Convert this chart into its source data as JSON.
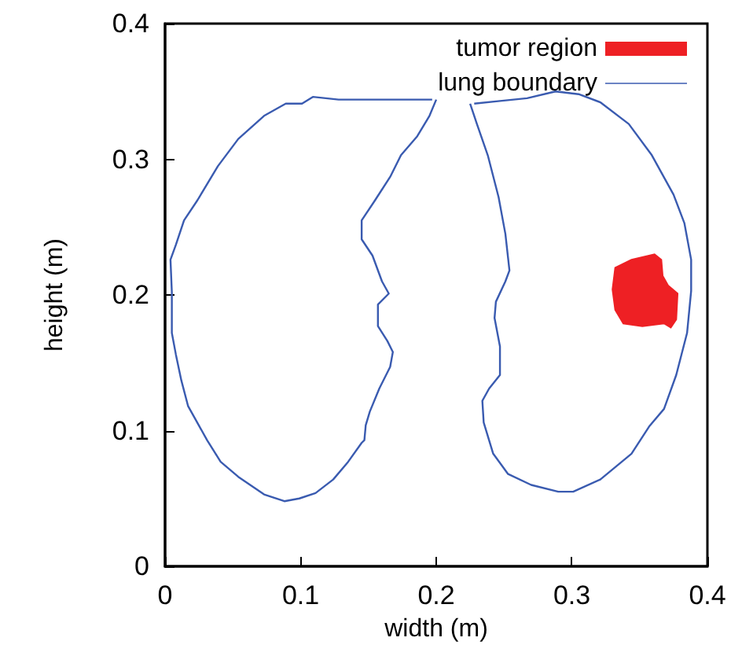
{
  "chart_data": {
    "type": "line",
    "xlabel": "width (m)",
    "ylabel": "height (m)",
    "xlim": [
      0,
      0.4
    ],
    "xticks": [
      0,
      0.1,
      0.2,
      0.3,
      0.4
    ],
    "ylim": [
      0,
      0.4
    ],
    "yticks": [
      0,
      0.1,
      0.2,
      0.3,
      0.4
    ],
    "grid": false,
    "legend": "top right",
    "marker": "none",
    "line_style": "solid",
    "series": [
      {
        "name": "tumor region",
        "type": "area",
        "color": "#ee2024",
        "x": [
          0.332,
          0.344,
          0.361,
          0.366,
          0.367,
          0.371,
          0.378,
          0.377,
          0.373,
          0.368,
          0.352,
          0.338,
          0.332,
          0.33
        ],
        "values": [
          0.22,
          0.226,
          0.23,
          0.226,
          0.214,
          0.207,
          0.201,
          0.182,
          0.176,
          0.179,
          0.177,
          0.179,
          0.189,
          0.204
        ]
      },
      {
        "name": "lung boundary",
        "color": "#3a5bb0",
        "x": [
          0.2,
          0.195,
          0.186,
          0.174,
          0.166,
          0.155,
          0.145,
          0.145,
          0.153,
          0.16,
          0.165,
          0.157,
          0.157,
          0.164,
          0.168,
          0.166,
          0.158,
          0.151,
          0.148,
          0.147,
          0.145,
          0.135,
          0.124,
          0.111,
          0.099,
          0.088,
          0.073,
          0.054,
          0.041,
          0.031,
          0.017,
          0.012,
          0.008,
          0.005,
          0.005,
          0.004,
          0.008,
          0.014,
          0.024,
          0.039,
          0.054,
          0.073,
          0.089,
          0.101,
          0.109,
          0.128,
          0.158,
          0.197
        ],
        "values": [
          0.344,
          0.332,
          0.317,
          0.303,
          0.287,
          0.27,
          0.255,
          0.241,
          0.229,
          0.21,
          0.201,
          0.193,
          0.177,
          0.166,
          0.158,
          0.147,
          0.131,
          0.114,
          0.104,
          0.093,
          0.091,
          0.077,
          0.064,
          0.054,
          0.05,
          0.048,
          0.053,
          0.066,
          0.077,
          0.093,
          0.118,
          0.137,
          0.156,
          0.172,
          0.202,
          0.226,
          0.237,
          0.255,
          0.27,
          0.295,
          0.315,
          0.332,
          0.341,
          0.341,
          0.346,
          0.344,
          0.344,
          0.344
        ]
      },
      {
        "color": "#3a5bb0",
        "x": [
          0.225,
          0.23,
          0.238,
          0.246,
          0.251,
          0.254,
          0.251,
          0.244,
          0.243,
          0.247,
          0.247,
          0.239,
          0.234,
          0.235,
          0.242,
          0.253,
          0.27,
          0.29,
          0.301,
          0.321,
          0.344,
          0.357,
          0.368,
          0.377,
          0.385,
          0.388,
          0.388,
          0.383,
          0.375,
          0.359,
          0.342,
          0.321,
          0.305,
          0.288,
          0.267,
          0.247,
          0.228
        ],
        "values": [
          0.341,
          0.326,
          0.303,
          0.272,
          0.245,
          0.218,
          0.21,
          0.195,
          0.183,
          0.162,
          0.141,
          0.131,
          0.122,
          0.106,
          0.083,
          0.068,
          0.06,
          0.055,
          0.055,
          0.064,
          0.083,
          0.103,
          0.116,
          0.141,
          0.172,
          0.203,
          0.226,
          0.253,
          0.274,
          0.303,
          0.326,
          0.342,
          0.348,
          0.35,
          0.345,
          0.343,
          0.341
        ]
      }
    ]
  }
}
